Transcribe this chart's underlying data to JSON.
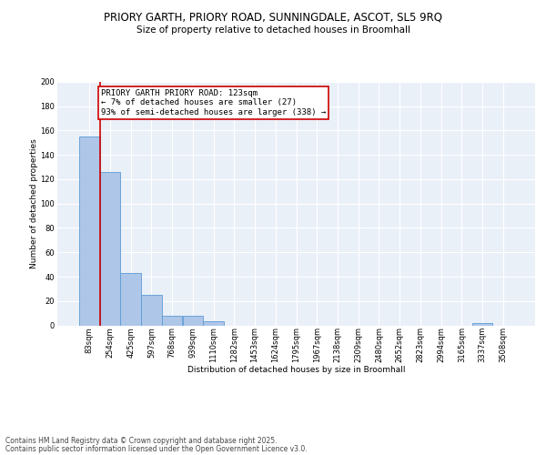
{
  "title_line1": "PRIORY GARTH, PRIORY ROAD, SUNNINGDALE, ASCOT, SL5 9RQ",
  "title_line2": "Size of property relative to detached houses in Broomhall",
  "xlabel": "Distribution of detached houses by size in Broomhall",
  "ylabel": "Number of detached properties",
  "categories": [
    "83sqm",
    "254sqm",
    "425sqm",
    "597sqm",
    "768sqm",
    "939sqm",
    "1110sqm",
    "1282sqm",
    "1453sqm",
    "1624sqm",
    "1795sqm",
    "1967sqm",
    "2138sqm",
    "2309sqm",
    "2480sqm",
    "2652sqm",
    "2823sqm",
    "2994sqm",
    "3165sqm",
    "3337sqm",
    "3508sqm"
  ],
  "values": [
    155,
    126,
    43,
    25,
    8,
    8,
    3,
    0,
    0,
    0,
    0,
    0,
    0,
    0,
    0,
    0,
    0,
    0,
    0,
    2,
    0
  ],
  "bar_color": "#aec6e8",
  "bar_edge_color": "#5b9bd5",
  "annotation_line_color": "#cc0000",
  "annotation_box_color": "#cc0000",
  "annotation_text": "PRIORY GARTH PRIORY ROAD: 123sqm\n← 7% of detached houses are smaller (27)\n93% of semi-detached houses are larger (338) →",
  "vline_x": 0.5,
  "ylim": [
    0,
    200
  ],
  "yticks": [
    0,
    20,
    40,
    60,
    80,
    100,
    120,
    140,
    160,
    180,
    200
  ],
  "background_color": "#eaf0f8",
  "grid_color": "#ffffff",
  "footer_line1": "Contains HM Land Registry data © Crown copyright and database right 2025.",
  "footer_line2": "Contains public sector information licensed under the Open Government Licence v3.0.",
  "title_fontsize": 8.5,
  "subtitle_fontsize": 7.5,
  "axis_label_fontsize": 6.5,
  "tick_fontsize": 6,
  "annotation_fontsize": 6.5,
  "footer_fontsize": 5.5
}
